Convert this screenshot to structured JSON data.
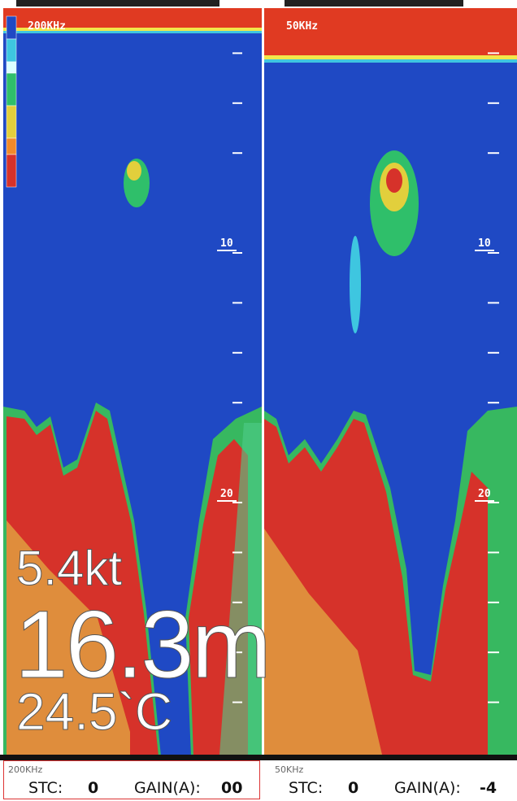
{
  "panels": [
    {
      "frequency": "200KHz",
      "depth_labels": [
        "10",
        "20"
      ],
      "readouts": {
        "speed": "5.4kt",
        "depth": "16.3m",
        "temperature": "24.5`C"
      }
    },
    {
      "frequency": "50KHz",
      "depth_labels": [
        "10",
        "20"
      ]
    }
  ],
  "status": [
    {
      "frequency": "200KHz",
      "stc_label": "STC:",
      "stc": "0",
      "gain_label": "GAIN(A):",
      "gain": "00"
    },
    {
      "frequency": "50KHz",
      "stc_label": "STC:",
      "stc": "0",
      "gain_label": "GAIN(A):",
      "gain": "-4"
    }
  ]
}
